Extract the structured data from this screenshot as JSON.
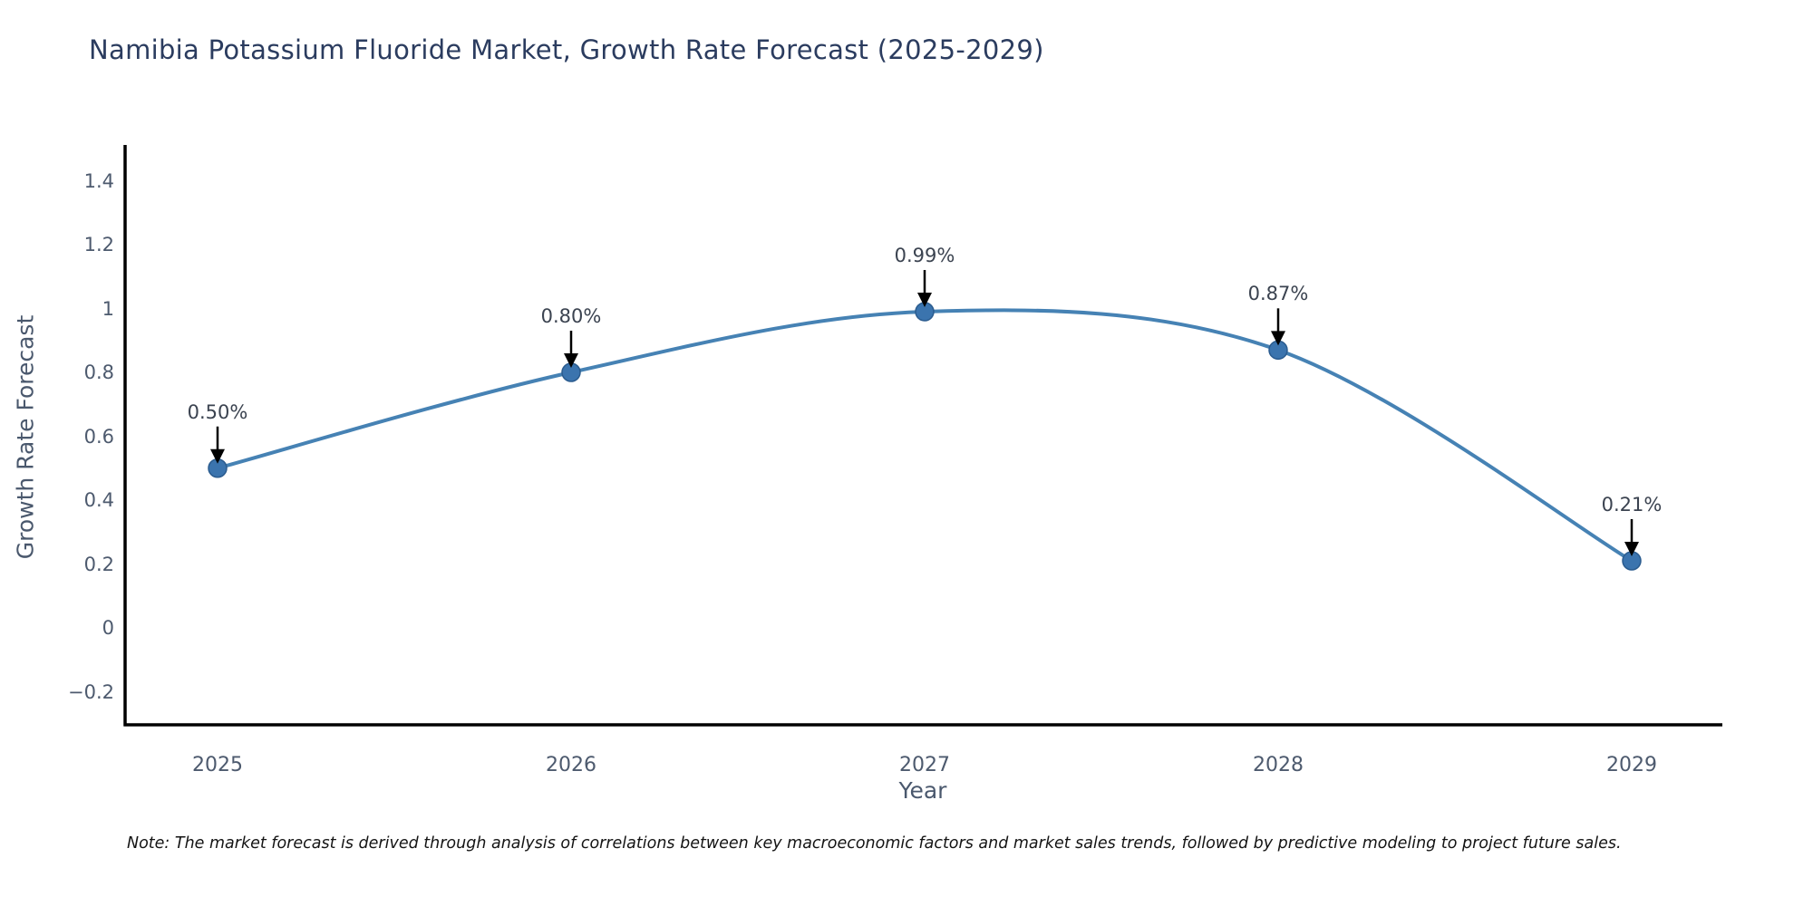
{
  "title": "Namibia Potassium Fluoride Market, Growth Rate Forecast (2025-2029)",
  "note": "Note: The market forecast is derived through analysis of correlations between key macroeconomic factors and market sales trends, followed by predictive modeling to project future sales.",
  "chart_data": {
    "type": "line",
    "title": "Namibia Potassium Fluoride Market, Growth Rate Forecast (2025-2029)",
    "xlabel": "Year",
    "ylabel": "Growth Rate Forecast",
    "x": [
      2025,
      2026,
      2027,
      2028,
      2029
    ],
    "y": [
      0.5,
      0.8,
      0.99,
      0.87,
      0.21
    ],
    "point_labels": [
      "0.50%",
      "0.80%",
      "0.99%",
      "0.87%",
      "0.21%"
    ],
    "x_tick_labels": [
      "2025",
      "2026",
      "2027",
      "2028",
      "2029"
    ],
    "y_ticks": [
      1.4,
      1.2,
      1,
      0.8,
      0.6,
      0.4,
      0.2,
      0,
      -0.2
    ],
    "y_tick_labels": [
      "1.4",
      "1.2",
      "1",
      "0.8",
      "0.6",
      "0.4",
      "0.2",
      "0",
      "−0.2"
    ],
    "ylim": [
      -0.31,
      1.51
    ],
    "grid": false,
    "legend": false,
    "smooth_curve": true,
    "annotation_arrows": true,
    "colors": {
      "line": "#4682b4",
      "marker_fill": "#3b74ae",
      "marker_edge": "#2b5c8f",
      "arrow": "#000000",
      "axis_line": "#000000",
      "title_text": "#2b3c5f",
      "tick_text": "#4d5a6e",
      "axis_label_text": "#4a586d",
      "note_text": "#141414"
    }
  }
}
